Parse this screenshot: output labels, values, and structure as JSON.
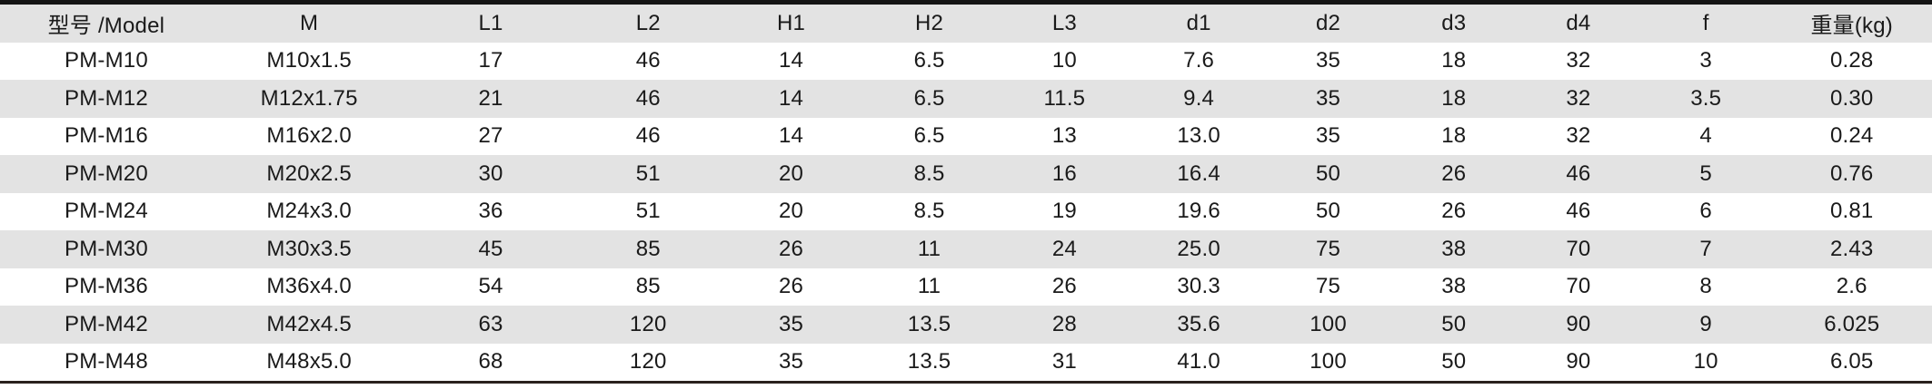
{
  "colors": {
    "header_bg": "#e3e3e3",
    "row_alt_bg": "#e3e3e3",
    "row_bg": "#ffffff",
    "top_rule": "#141414",
    "bottom_rule": "#2a211d",
    "text": "#1a1a1a"
  },
  "table": {
    "headers": [
      "型号 /Model",
      "M",
      "L1",
      "L2",
      "H1",
      "H2",
      "L3",
      "d1",
      "d2",
      "d3",
      "d4",
      "f",
      "重量(kg)"
    ],
    "col_widths_pct": [
      11.0,
      10.0,
      8.8,
      7.5,
      7.3,
      7.0,
      7.0,
      6.9,
      6.5,
      6.5,
      6.4,
      6.8,
      8.3
    ],
    "rows": [
      [
        "PM-M10",
        "M10x1.5",
        "17",
        "46",
        "14",
        "6.5",
        "10",
        "7.6",
        "35",
        "18",
        "32",
        "3",
        "0.28"
      ],
      [
        "PM-M12",
        "M12x1.75",
        "21",
        "46",
        "14",
        "6.5",
        "11.5",
        "9.4",
        "35",
        "18",
        "32",
        "3.5",
        "0.30"
      ],
      [
        "PM-M16",
        "M16x2.0",
        "27",
        "46",
        "14",
        "6.5",
        "13",
        "13.0",
        "35",
        "18",
        "32",
        "4",
        "0.24"
      ],
      [
        "PM-M20",
        "M20x2.5",
        "30",
        "51",
        "20",
        "8.5",
        "16",
        "16.4",
        "50",
        "26",
        "46",
        "5",
        "0.76"
      ],
      [
        "PM-M24",
        "M24x3.0",
        "36",
        "51",
        "20",
        "8.5",
        "19",
        "19.6",
        "50",
        "26",
        "46",
        "6",
        "0.81"
      ],
      [
        "PM-M30",
        "M30x3.5",
        "45",
        "85",
        "26",
        "11",
        "24",
        "25.0",
        "75",
        "38",
        "70",
        "7",
        "2.43"
      ],
      [
        "PM-M36",
        "M36x4.0",
        "54",
        "85",
        "26",
        "11",
        "26",
        "30.3",
        "75",
        "38",
        "70",
        "8",
        "2.6"
      ],
      [
        "PM-M42",
        "M42x4.5",
        "63",
        "120",
        "35",
        "13.5",
        "28",
        "35.6",
        "100",
        "50",
        "90",
        "9",
        "6.025"
      ],
      [
        "PM-M48",
        "M48x5.0",
        "68",
        "120",
        "35",
        "13.5",
        "31",
        "41.0",
        "100",
        "50",
        "90",
        "10",
        "6.05"
      ]
    ]
  }
}
